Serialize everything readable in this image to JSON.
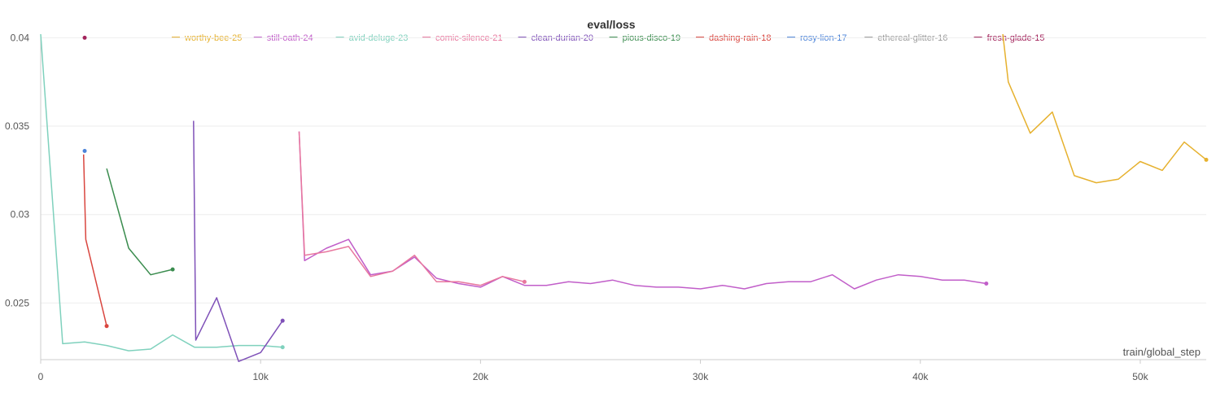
{
  "chart_data": {
    "type": "line",
    "title": "eval/loss",
    "xlabel": "train/global_step",
    "ylabel": "",
    "xlim": [
      0,
      53000
    ],
    "ylim": [
      0.0218,
      0.0402
    ],
    "x_ticks": [
      0,
      10000,
      20000,
      30000,
      40000,
      50000
    ],
    "x_tick_labels": [
      "0",
      "10k",
      "20k",
      "30k",
      "40k",
      "50k"
    ],
    "y_ticks": [
      0.025,
      0.03,
      0.035,
      0.04
    ],
    "y_tick_labels": [
      "0.025",
      "0.03",
      "0.035",
      "0.04"
    ],
    "grid": true,
    "legend_position": "top",
    "series": [
      {
        "name": "worthy-bee-25",
        "color": "#e6b12e",
        "x": [
          43750,
          44000,
          45000,
          46000,
          47000,
          48000,
          49000,
          50000,
          51000,
          52000,
          53000
        ],
        "y": [
          0.0402,
          0.0375,
          0.0346,
          0.0358,
          0.0322,
          0.0318,
          0.032,
          0.033,
          0.0325,
          0.0341,
          0.0331
        ]
      },
      {
        "name": "still-oath-24",
        "color": "#c15ec9",
        "x": [
          11750,
          12000,
          13000,
          14000,
          15000,
          16000,
          17000,
          18000,
          19000,
          20000,
          21000,
          22000,
          23000,
          24000,
          25000,
          26000,
          27000,
          28000,
          29000,
          30000,
          31000,
          32000,
          33000,
          34000,
          35000,
          36000,
          37000,
          38000,
          39000,
          40000,
          41000,
          42000,
          43000
        ],
        "y": [
          0.0347,
          0.0274,
          0.0281,
          0.0286,
          0.0266,
          0.0268,
          0.0276,
          0.0264,
          0.0261,
          0.0259,
          0.0265,
          0.026,
          0.026,
          0.0262,
          0.0261,
          0.0263,
          0.026,
          0.0259,
          0.0259,
          0.0258,
          0.026,
          0.0258,
          0.0261,
          0.0262,
          0.0262,
          0.0266,
          0.0258,
          0.0263,
          0.0266,
          0.0265,
          0.0263,
          0.0263,
          0.0261
        ]
      },
      {
        "name": "avid-deluge-23",
        "color": "#7fd1bd",
        "x": [
          0,
          1000,
          2000,
          3000,
          4000,
          5000,
          6000,
          7000,
          8000,
          9000,
          10000,
          11000
        ],
        "y": [
          0.0402,
          0.0227,
          0.0228,
          0.0226,
          0.0223,
          0.0224,
          0.0232,
          0.0225,
          0.0225,
          0.0226,
          0.0226,
          0.0225
        ]
      },
      {
        "name": "comic-silence-21",
        "color": "#e8779e",
        "x": [
          11750,
          12000,
          13000,
          14000,
          15000,
          16000,
          17000,
          18000,
          19000,
          20000,
          21000,
          22000
        ],
        "y": [
          0.0347,
          0.0277,
          0.0279,
          0.0282,
          0.0265,
          0.0268,
          0.0277,
          0.0262,
          0.0262,
          0.026,
          0.0265,
          0.0262
        ]
      },
      {
        "name": "clean-durian-20",
        "color": "#7f51b8",
        "x": [
          6950,
          7050,
          8000,
          9000,
          10000,
          11000
        ],
        "y": [
          0.0353,
          0.0229,
          0.0253,
          0.0217,
          0.0222,
          0.024
        ]
      },
      {
        "name": "pious-disco-19",
        "color": "#3a8c4e",
        "x": [
          3000,
          4000,
          5000,
          6000
        ],
        "y": [
          0.0326,
          0.0281,
          0.0266,
          0.0269
        ]
      },
      {
        "name": "dashing-rain-18",
        "color": "#d9463f",
        "x": [
          1950,
          2050,
          3000
        ],
        "y": [
          0.0334,
          0.0286,
          0.0237
        ]
      },
      {
        "name": "rosy-lion-17",
        "color": "#4c84d9",
        "x": [
          2000
        ],
        "y": [
          0.0336
        ]
      },
      {
        "name": "ethereal-glitter-16",
        "color": "#999999",
        "x": [],
        "y": []
      },
      {
        "name": "fresh-glade-15",
        "color": "#a3245c",
        "x": [
          2000
        ],
        "y": [
          0.04
        ]
      }
    ]
  }
}
